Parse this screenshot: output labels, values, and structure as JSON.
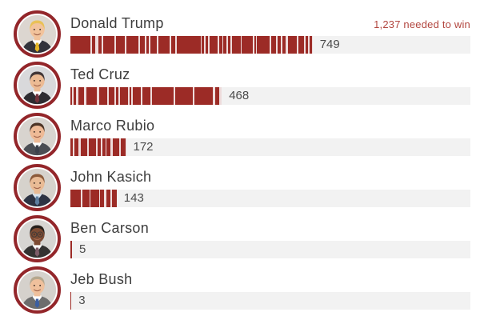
{
  "header": {
    "needed_label": "1,237 needed to win"
  },
  "colors": {
    "bar_red": "#9c2b26",
    "bar_gap": "#eedcdc",
    "track_gray": "#f2f2f2",
    "avatar_ring": "#93262a",
    "name_text": "#3d3d3d",
    "value_text": "#4b4b4b",
    "needed_text": "#b2463f"
  },
  "chart_data": {
    "type": "bar",
    "orientation": "horizontal",
    "title": "",
    "xlabel": "",
    "ylabel": "",
    "categories": [
      "Donald Trump",
      "Ted Cruz",
      "Marco Rubio",
      "John Kasich",
      "Ben Carson",
      "Jeb Bush"
    ],
    "values": [
      749,
      468,
      172,
      143,
      5,
      3
    ],
    "xlim": [
      0,
      1237
    ],
    "needed_to_win": 1237,
    "annotations": [
      "1,237 needed to win"
    ],
    "grid": false,
    "legend": null,
    "bar_style": "segmented-barcode"
  },
  "candidates": [
    {
      "name": "Donald Trump",
      "delegates": 749,
      "delegates_label": "749",
      "avatar": {
        "skin": "#f2c39c",
        "hair": "#e9c157",
        "suit": "#33333b",
        "shirt": "#ffffff",
        "tie": "#e5b625",
        "bg": "#dcd6d0",
        "glasses": false
      }
    },
    {
      "name": "Ted Cruz",
      "delegates": 468,
      "delegates_label": "468",
      "avatar": {
        "skin": "#ecbb94",
        "hair": "#423737",
        "suit": "#2e2c31",
        "shirt": "#ffffff",
        "tie": "#74333c",
        "bg": "#d9d9db",
        "glasses": false
      }
    },
    {
      "name": "Marco Rubio",
      "delegates": 172,
      "delegates_label": "172",
      "avatar": {
        "skin": "#eeba96",
        "hair": "#4d3527",
        "suit": "#4b4e54",
        "shirt": "#ffffff",
        "tie": "#3c414c",
        "bg": "#d8d4cf",
        "glasses": false
      }
    },
    {
      "name": "John Kasich",
      "delegates": 143,
      "delegates_label": "143",
      "avatar": {
        "skin": "#e9bb95",
        "hair": "#8c5b3b",
        "suit": "#2d3343",
        "shirt": "#d8e3ee",
        "tie": "#5d7ea0",
        "bg": "#d6d2cc",
        "glasses": false
      }
    },
    {
      "name": "Ben Carson",
      "delegates": 5,
      "delegates_label": "5",
      "avatar": {
        "skin": "#7c4b33",
        "hair": "#26201c",
        "suit": "#343231",
        "shirt": "#ffffff",
        "tie": "#7d5c68",
        "bg": "#d7d5d2",
        "glasses": true
      }
    },
    {
      "name": "Jeb Bush",
      "delegates": 3,
      "delegates_label": "3",
      "avatar": {
        "skin": "#efc09c",
        "hair": "#b5a78e",
        "suit": "#6d6d6d",
        "shirt": "#ffffff",
        "tie": "#3c5fa1",
        "bg": "#d5d1cc",
        "glasses": false
      }
    }
  ]
}
